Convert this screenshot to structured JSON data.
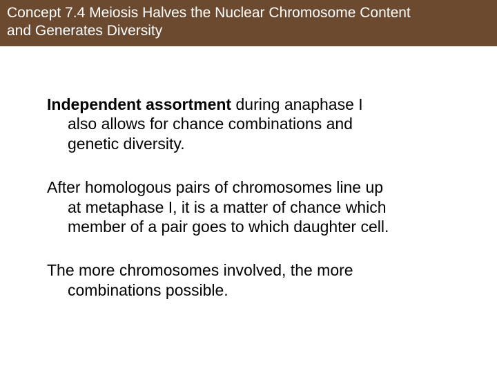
{
  "header": {
    "title_line1": "Concept 7.4 Meiosis Halves the Nuclear Chromosome Content",
    "title_line2": "and Generates Diversity"
  },
  "body": {
    "p1_bold": "Independent assortment",
    "p1_rest_first": " during anaphase I",
    "p1_line2": "also allows for chance combinations and",
    "p1_line3": "genetic diversity.",
    "p2_line1": "After homologous pairs of chromosomes line up",
    "p2_line2": "at metaphase I, it is a matter of chance which",
    "p2_line3": "member of a pair goes to which daughter cell.",
    "p3_line1": "The more chromosomes involved, the more",
    "p3_line2": "combinations possible."
  },
  "colors": {
    "header_bg": "#6b4a30",
    "header_text": "#ffffff",
    "body_text": "#000000",
    "page_bg": "#ffffff"
  }
}
